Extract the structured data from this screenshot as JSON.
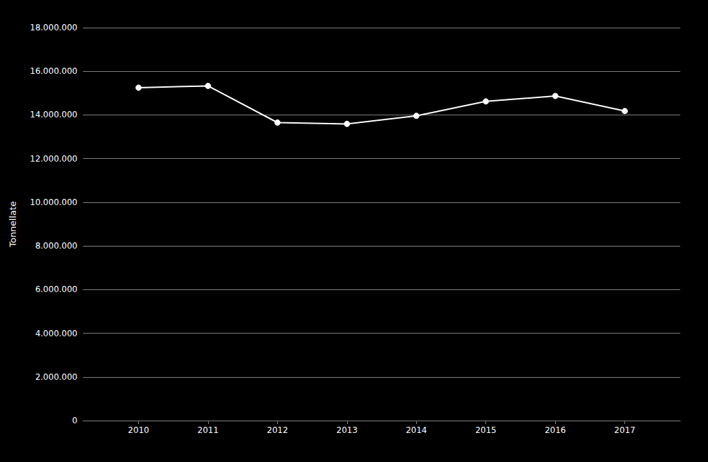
{
  "chart_data": {
    "type": "line",
    "x": [
      2010,
      2011,
      2012,
      2013,
      2014,
      2015,
      2016,
      2017
    ],
    "values": [
      15250000,
      15330000,
      13650000,
      13590000,
      13960000,
      14620000,
      14870000,
      14180000
    ],
    "color": "#ffffff",
    "marker": "circle",
    "ylabel": "Tonnellate",
    "xlim": [
      2009.2,
      2017.8
    ],
    "xticks": [
      2010,
      2011,
      2012,
      2013,
      2014,
      2015,
      2016,
      2017
    ],
    "ylim": [
      0,
      18000000
    ],
    "yticks": [
      0,
      {
        "value": 2000000,
        "label": "2.000.000"
      },
      {
        "value": 4000000,
        "label": "4.000.000"
      },
      {
        "value": 6000000,
        "label": "6.000.000"
      },
      {
        "value": 8000000,
        "label": "8.000.000"
      },
      {
        "value": 10000000,
        "label": "10.000.000"
      },
      {
        "value": 12000000,
        "label": "12.000.000"
      },
      {
        "value": 14000000,
        "label": "14.000.000"
      },
      {
        "value": 16000000,
        "label": "16.000.000"
      },
      {
        "value": 18000000,
        "label": "18.000.000"
      }
    ],
    "grid": true
  }
}
